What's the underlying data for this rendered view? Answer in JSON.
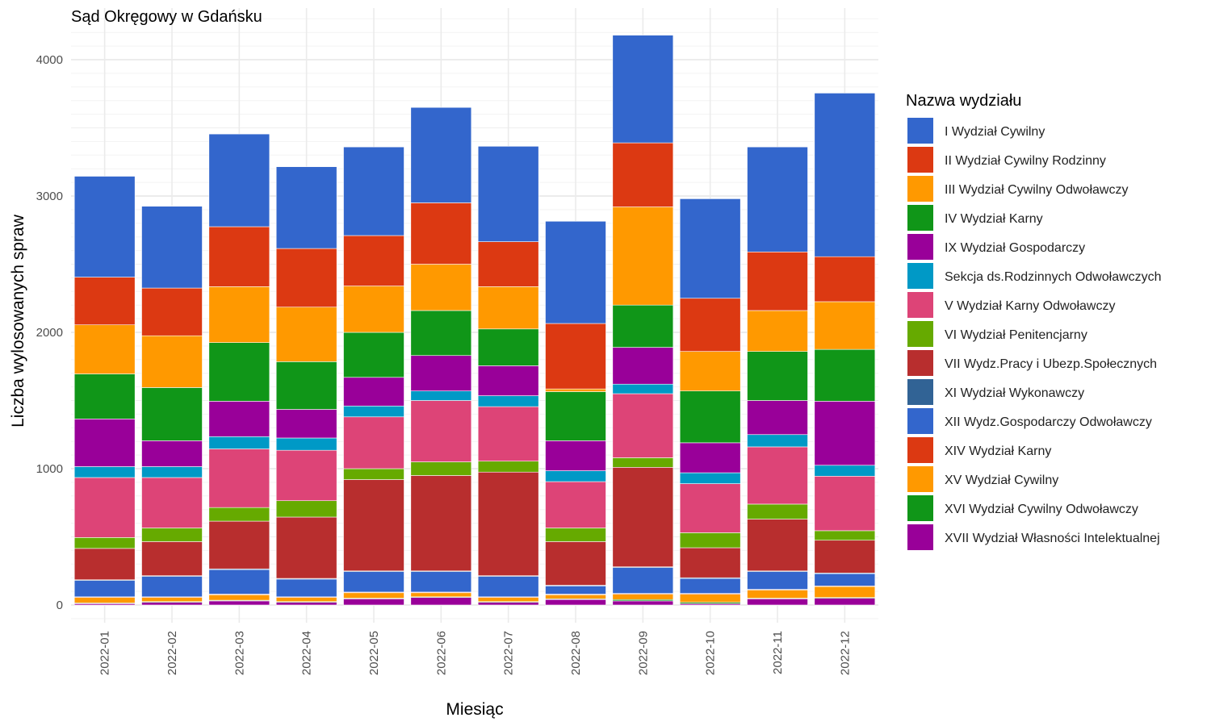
{
  "chart_data": {
    "type": "bar",
    "stacked": true,
    "title": "Sąd Okręgowy w Gdańsku",
    "xlabel": "Miesiąc",
    "ylabel": "Liczba wylosowanych spraw",
    "legend_title": "Nazwa wydziału",
    "legend_position": "right",
    "grid": true,
    "ylim": [
      0,
      4300
    ],
    "yticks": [
      0,
      1000,
      2000,
      3000,
      4000
    ],
    "categories": [
      "2022-01",
      "2022-02",
      "2022-03",
      "2022-04",
      "2022-05",
      "2022-06",
      "2022-07",
      "2022-08",
      "2022-09",
      "2022-10",
      "2022-11",
      "2022-12"
    ],
    "stack_order_bottom_to_top": [
      "XVII Wydział Własności Intelektualnej",
      "XVI Wydział Cywilny Odwoławczy",
      "XV Wydział Cywilny",
      "XIV Wydział Karny",
      "XII Wydz.Gospodarczy Odwoławczy",
      "XI Wydział Wykonawczy",
      "VII Wydz.Pracy i Ubezp.Społecznych",
      "VI Wydział Penitencjarny",
      "V Wydział Karny Odwoławczy",
      "Sekcja ds.Rodzinnych Odwoławczych",
      "IX Wydział Gospodarczy",
      "IV Wydział Karny",
      "III Wydział Cywilny Odwoławczy",
      "II Wydział Cywilny Rodzinny",
      "I Wydział Cywilny"
    ],
    "series": [
      {
        "name": "I Wydział Cywilny",
        "color": "#3366CC",
        "values": [
          740,
          600,
          680,
          600,
          650,
          700,
          700,
          750,
          790,
          730,
          770,
          1200
        ]
      },
      {
        "name": "II Wydział Cywilny Rodzinny",
        "color": "#DC3912",
        "values": [
          350,
          350,
          440,
          430,
          370,
          450,
          330,
          480,
          470,
          390,
          430,
          330
        ]
      },
      {
        "name": "III Wydział Cywilny Odwoławczy",
        "color": "#FF9900",
        "values": [
          360,
          380,
          410,
          400,
          340,
          340,
          310,
          20,
          720,
          290,
          300,
          350
        ]
      },
      {
        "name": "IV Wydział Karny",
        "color": "#109618",
        "values": [
          330,
          390,
          430,
          350,
          330,
          330,
          270,
          360,
          310,
          380,
          360,
          380
        ]
      },
      {
        "name": "IX Wydział Gospodarczy",
        "color": "#990099",
        "values": [
          350,
          190,
          260,
          210,
          210,
          260,
          220,
          220,
          270,
          220,
          250,
          470
        ]
      },
      {
        "name": "Sekcja ds.Rodzinnych Odwoławczych",
        "color": "#0099C6",
        "values": [
          80,
          80,
          90,
          90,
          80,
          70,
          80,
          80,
          70,
          80,
          90,
          80
        ]
      },
      {
        "name": "V Wydział Karny Odwoławczy",
        "color": "#DD4477",
        "values": [
          440,
          370,
          430,
          370,
          380,
          450,
          400,
          340,
          470,
          360,
          420,
          400
        ]
      },
      {
        "name": "VI Wydział Penitencjarny",
        "color": "#66AA00",
        "values": [
          80,
          100,
          100,
          120,
          80,
          100,
          80,
          100,
          70,
          110,
          110,
          70
        ]
      },
      {
        "name": "VII Wydz.Pracy i Ubezp.Społecznych",
        "color": "#B82E2E",
        "values": [
          230,
          250,
          350,
          450,
          670,
          700,
          760,
          320,
          730,
          220,
          380,
          240
        ]
      },
      {
        "name": "XI Wydział Wykonawczy",
        "color": "#316395",
        "values": [
          5,
          5,
          5,
          5,
          5,
          5,
          5,
          5,
          5,
          5,
          5,
          5
        ]
      },
      {
        "name": "XII Wydz.Gospodarczy Odwoławczy",
        "color": "#3366CC",
        "values": [
          120,
          150,
          180,
          130,
          150,
          150,
          150,
          60,
          190,
          110,
          130,
          90
        ]
      },
      {
        "name": "XIV Wydział Karny",
        "color": "#DC3912",
        "values": [
          5,
          5,
          5,
          5,
          5,
          5,
          5,
          5,
          5,
          5,
          5,
          5
        ]
      },
      {
        "name": "XV Wydział Cywilny",
        "color": "#FF9900",
        "values": [
          40,
          30,
          40,
          30,
          40,
          30,
          30,
          30,
          40,
          60,
          60,
          80
        ]
      },
      {
        "name": "XVI Wydział Cywilny Odwoławczy",
        "color": "#109618",
        "values": [
          5,
          5,
          5,
          5,
          5,
          5,
          5,
          5,
          10,
          10,
          5,
          5
        ]
      },
      {
        "name": "XVII Wydział Własności Intelektualnej",
        "color": "#990099",
        "values": [
          10,
          20,
          30,
          20,
          45,
          55,
          20,
          40,
          30,
          10,
          45,
          50
        ]
      }
    ]
  }
}
